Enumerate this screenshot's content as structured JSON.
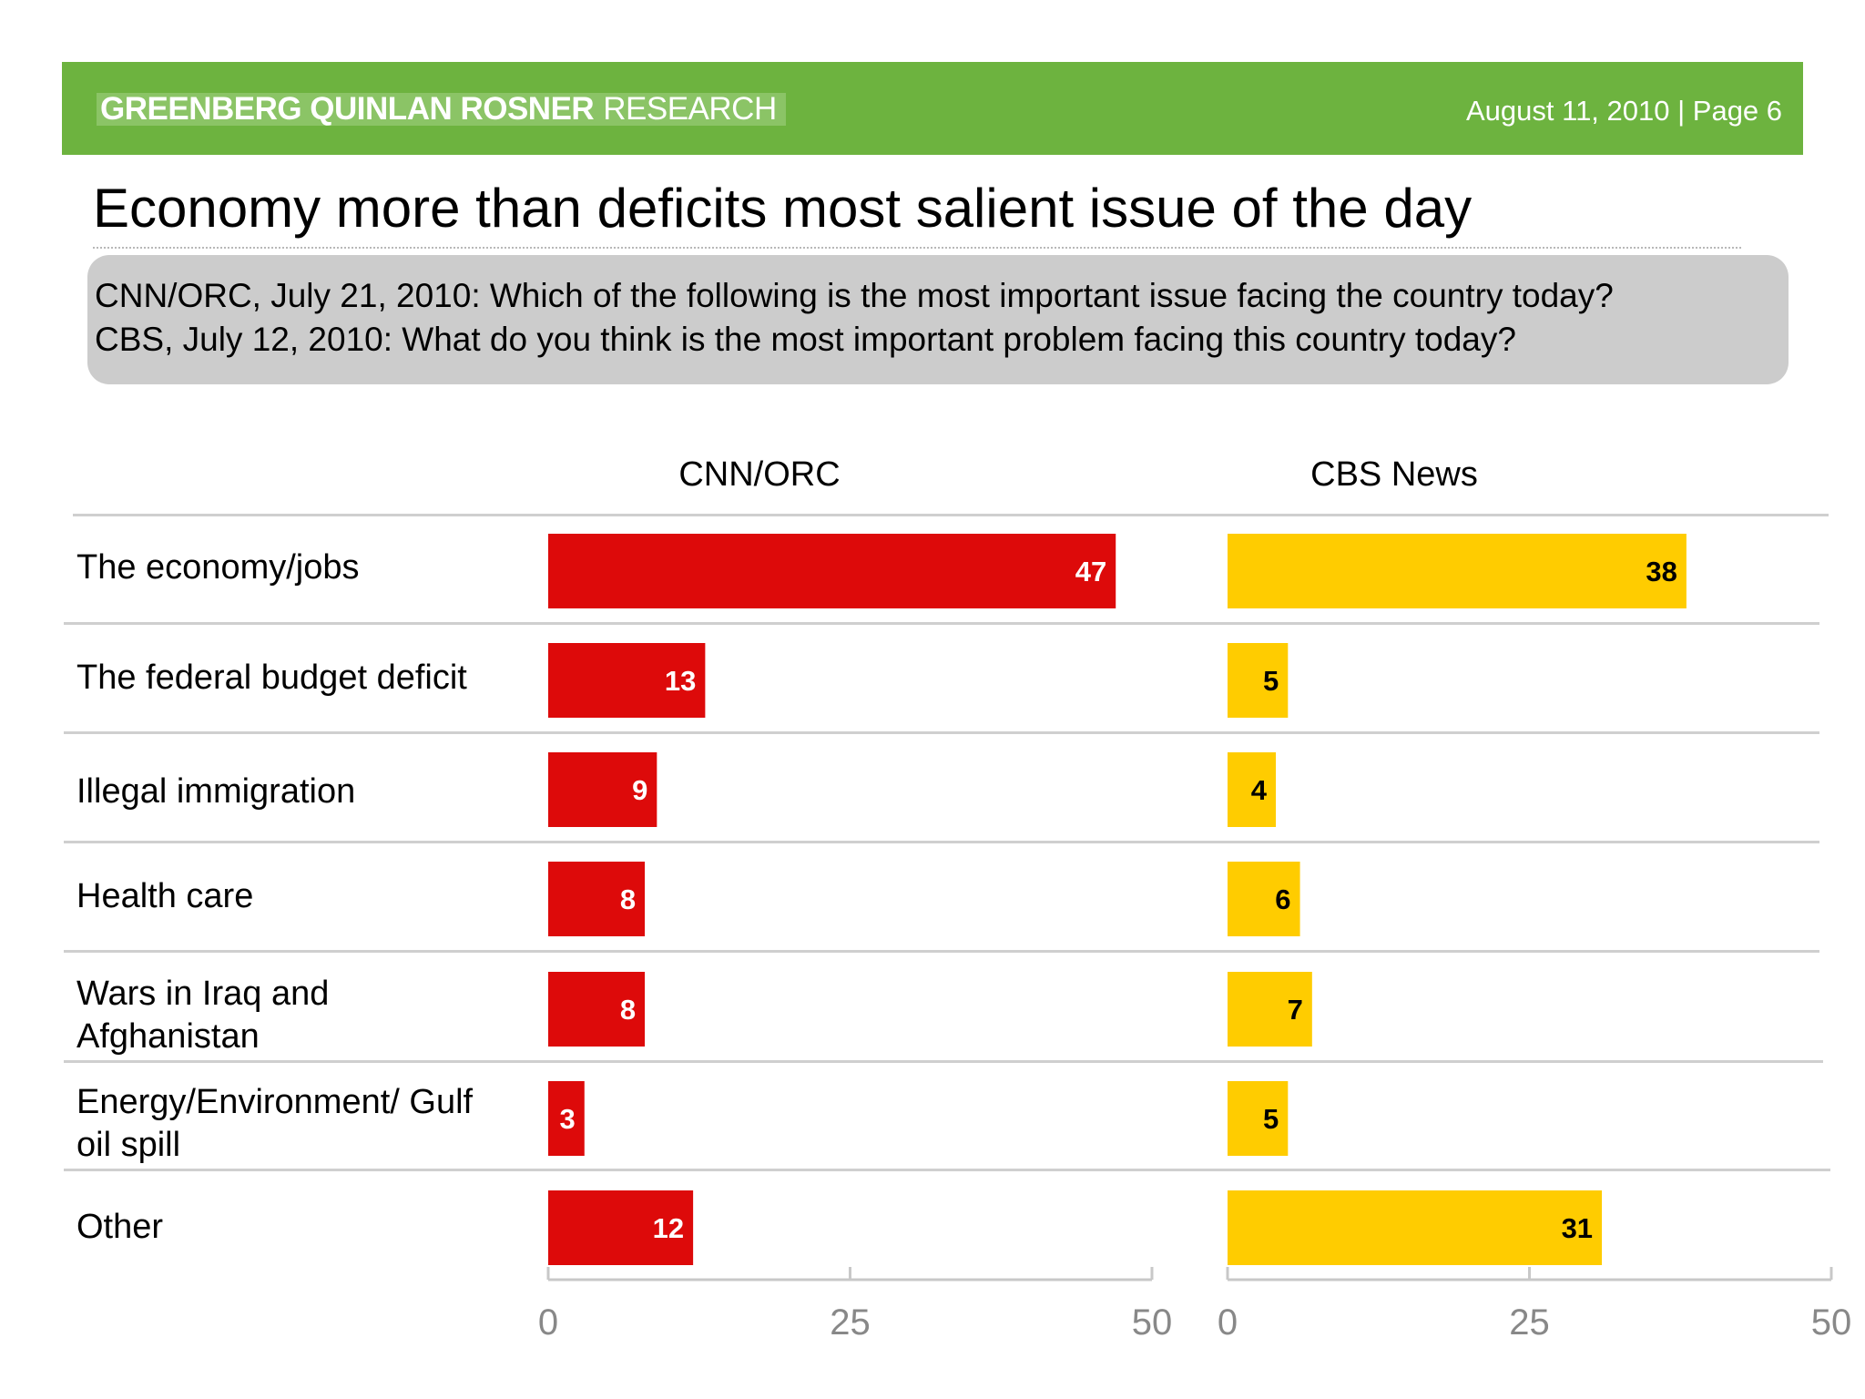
{
  "header": {
    "brand_bold": "GREENBERG QUINLAN ROSNER",
    "brand_light": "RESEARCH",
    "date_page": "August 11, 2010  |  Page 6",
    "bar_color": "#6db33f"
  },
  "title": "Economy more than deficits most salient issue of the day",
  "questions": [
    "CNN/ORC, July 21, 2010: Which of the following is the most important issue facing the country today?",
    "CBS, July 12, 2010: What do you think is the most important problem facing this country today?"
  ],
  "chart_data": [
    {
      "type": "bar",
      "orientation": "horizontal",
      "title": "CNN/ORC",
      "categories": [
        "The economy/jobs",
        "The federal budget deficit",
        "Illegal immigration",
        "Health care",
        "Wars in Iraq and Afghanistan",
        "Energy/Environment/ Gulf oil spill",
        "Other"
      ],
      "values": [
        47,
        13,
        9,
        8,
        8,
        3,
        12
      ],
      "xlim": [
        0,
        50
      ],
      "ticks": [
        "0",
        "25",
        "50"
      ],
      "color": "#dd0a0a",
      "label_color": "#ffffff",
      "grid": false
    },
    {
      "type": "bar",
      "orientation": "horizontal",
      "title": "CBS News",
      "categories": [
        "The economy/jobs",
        "The federal budget deficit",
        "Illegal immigration",
        "Health care",
        "Wars in Iraq and Afghanistan",
        "Energy/Environment/ Gulf oil spill",
        "Other"
      ],
      "values": [
        38,
        5,
        4,
        6,
        7,
        5,
        31
      ],
      "xlim": [
        0,
        50
      ],
      "ticks": [
        "0",
        "25",
        "50"
      ],
      "color": "#ffcc00",
      "label_color": "#000000",
      "grid": false
    }
  ]
}
